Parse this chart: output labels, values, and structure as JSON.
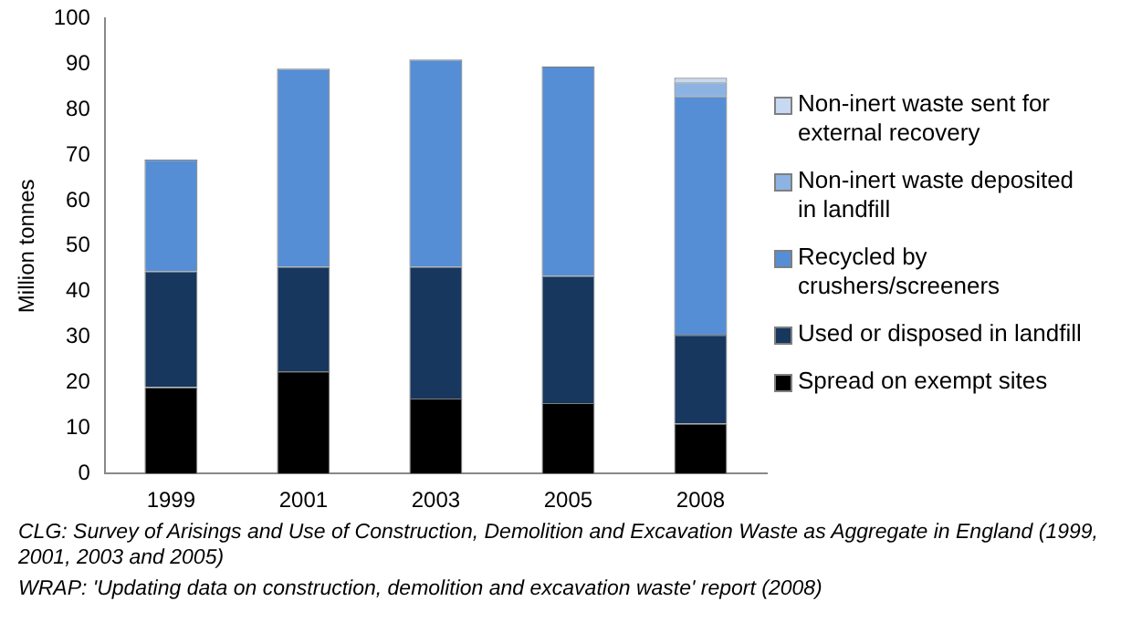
{
  "chart_data": {
    "type": "bar",
    "stacked": true,
    "ylabel": "Million tonnes",
    "categories": [
      "1999",
      "2001",
      "2003",
      "2005",
      "2008"
    ],
    "series": [
      {
        "name": "Spread on exempt sites",
        "color": "#000000",
        "values": [
          19,
          22.5,
          16.5,
          15.5,
          11
        ]
      },
      {
        "name": "Used or disposed in landfill",
        "color": "#17375e",
        "values": [
          25.5,
          23,
          29,
          28,
          19.5
        ]
      },
      {
        "name": "Recycled by crushers/screeners",
        "color": "#558ed5",
        "values": [
          24.5,
          43.5,
          45.5,
          46,
          52.5
        ]
      },
      {
        "name": "Non-inert waste deposited in landfill",
        "color": "#8db3e2",
        "values": [
          null,
          null,
          null,
          null,
          3
        ]
      },
      {
        "name": "Non-inert waste sent for external recovery",
        "color": "#c6d9f1",
        "values": [
          null,
          null,
          null,
          null,
          1
        ]
      }
    ],
    "ylim": [
      0,
      100
    ],
    "yticks": [
      0,
      10,
      20,
      30,
      40,
      50,
      60,
      70,
      80,
      90,
      100
    ],
    "grid": false,
    "legend": "right",
    "annotations": [
      "CLG: Survey of Arisings and Use of Construction, Demolition and Excavation Waste as Aggregate in England (1999, 2001, 2003 and 2005)",
      "WRAP: 'Updating data on construction, demolition and excavation waste' report (2008)"
    ]
  }
}
